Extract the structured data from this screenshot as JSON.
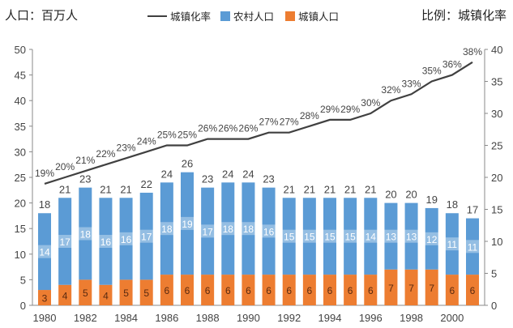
{
  "chart_data": {
    "type": "bar",
    "stacked": true,
    "left_axis_title": "人口：百万人",
    "right_axis_title": "比例：城镇化率",
    "categories": [
      "1980",
      "1981",
      "1982",
      "1983",
      "1984",
      "1985",
      "1986",
      "1987",
      "1988",
      "1989",
      "1990",
      "1991",
      "1992",
      "1993",
      "1994",
      "1995",
      "1996",
      "1997",
      "1998",
      "1999",
      "2000",
      "2001"
    ],
    "x_tick_labels": [
      "1980",
      "1982",
      "1984",
      "1986",
      "1988",
      "1990",
      "1992",
      "1994",
      "1996",
      "1998",
      "2000"
    ],
    "series": [
      {
        "name": "城镇人口",
        "type": "bar",
        "axis": "left",
        "color": "#ED7D31",
        "values": [
          3,
          4,
          5,
          4,
          5,
          5,
          6,
          6,
          6,
          6,
          6,
          6,
          6,
          6,
          6,
          6,
          6,
          7,
          7,
          7,
          6,
          6
        ]
      },
      {
        "name": "农村人口",
        "type": "bar",
        "axis": "left",
        "color": "#5B9BD5",
        "values": [
          14,
          17,
          18,
          16,
          16,
          17,
          18,
          19,
          17,
          18,
          18,
          16,
          15,
          15,
          15,
          15,
          14,
          13,
          13,
          12,
          11,
          11
        ]
      },
      {
        "name": "城镇化率",
        "type": "line",
        "axis": "right",
        "color": "#404040",
        "values": [
          19,
          20,
          21,
          22,
          23,
          24,
          25,
          25,
          26,
          26,
          26,
          27,
          27,
          28,
          29,
          29,
          30,
          32,
          33,
          35,
          36,
          38
        ]
      }
    ],
    "totals": [
      18,
      21,
      23,
      21,
      21,
      22,
      24,
      26,
      23,
      24,
      24,
      23,
      21,
      21,
      21,
      21,
      21,
      20,
      20,
      19,
      18,
      17
    ],
    "left_ylim": [
      0,
      50
    ],
    "left_ticks": [
      0,
      5,
      10,
      15,
      20,
      25,
      30,
      35,
      40,
      45,
      50
    ],
    "right_ylim": [
      0,
      40
    ],
    "right_ticks": [
      0,
      5,
      10,
      15,
      20,
      25,
      30,
      35,
      40
    ],
    "grid": false,
    "legend_position": "top"
  }
}
